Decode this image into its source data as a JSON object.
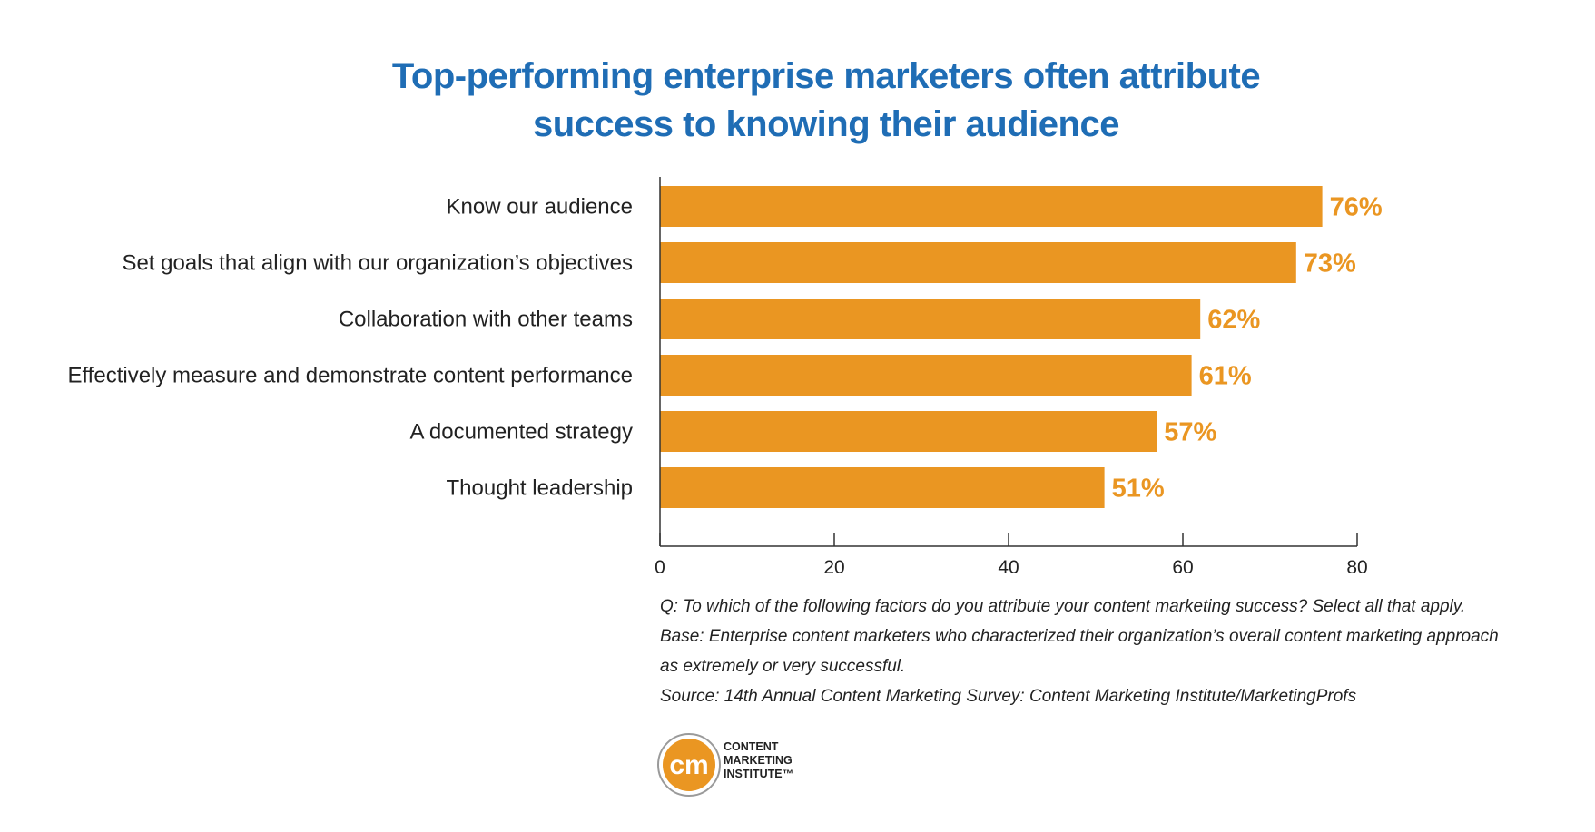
{
  "chart_data": {
    "type": "bar",
    "orientation": "horizontal",
    "title_lines": [
      "Top-performing enterprise marketers often attribute",
      "success to knowing their audience"
    ],
    "categories": [
      "Know our audience",
      "Set goals that align with our organization’s objectives",
      "Collaboration with other teams",
      "Effectively measure and demonstrate content performance",
      "A documented strategy",
      "Thought leadership"
    ],
    "values": [
      76,
      73,
      62,
      61,
      57,
      51
    ],
    "value_labels": [
      "76%",
      "73%",
      "62%",
      "61%",
      "57%",
      "51%"
    ],
    "xlim": [
      0,
      80
    ],
    "x_ticks": [
      0,
      20,
      40,
      60,
      80
    ],
    "xlabel": "",
    "ylabel": "",
    "grid": false,
    "legend": "none",
    "bar_color": "#ea9622",
    "label_color": "#ea9622"
  },
  "notes": [
    "Q: To which of the following factors do you attribute your content marketing success? Select all that apply.",
    "Base: Enterprise content marketers who characterized their organization’s overall content marketing approach",
    "as extremely or very successful.",
    "Source: 14th Annual Content Marketing Survey: Content Marketing Institute/MarketingProfs"
  ],
  "logo": {
    "mark": "cm",
    "lines": [
      "CONTENT",
      "MARKETING",
      "INSTITUTE™"
    ],
    "ring_color": "#ea9622",
    "title_color": "#1f6db5"
  }
}
